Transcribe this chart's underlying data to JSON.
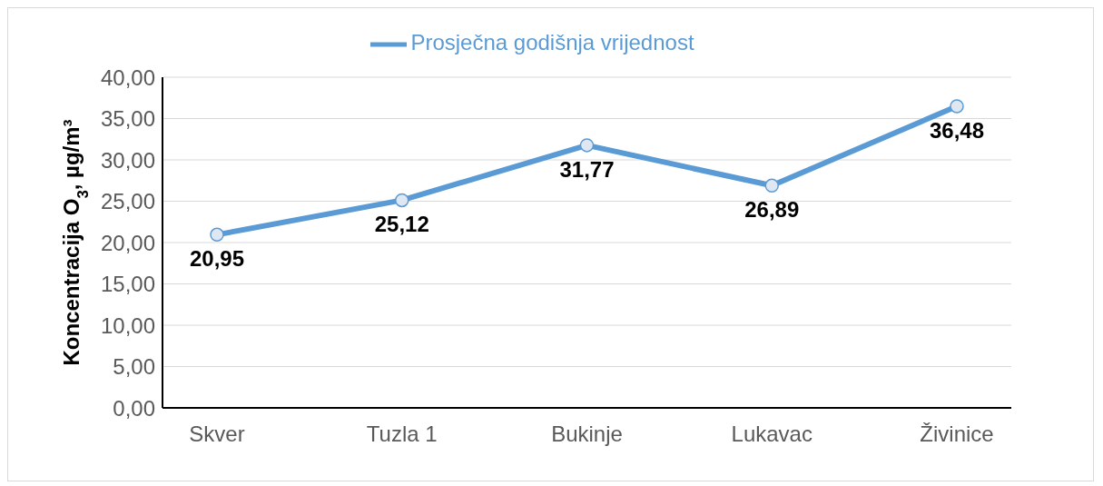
{
  "chart_data": {
    "type": "line",
    "ylabel": "Koncentracija O$_{3}$,  µg/m³",
    "categories": [
      "Skver",
      "Tuzla 1",
      "Bukinje",
      "Lukavac",
      "Živinice"
    ],
    "series": [
      {
        "name": "Prosječna godišnja vrijednost",
        "color": "#5b9bd5",
        "values": [
          20.95,
          25.12,
          31.77,
          26.89,
          36.48
        ],
        "value_labels": [
          "20,95",
          "25,12",
          "31,77",
          "26,89",
          "36,48"
        ]
      }
    ],
    "ylim": [
      0,
      40
    ],
    "yticks": [
      {
        "value": 0,
        "label": "0,00"
      },
      {
        "value": 5,
        "label": "5,00"
      },
      {
        "value": 10,
        "label": "10,00"
      },
      {
        "value": 15,
        "label": "15,00"
      },
      {
        "value": 20,
        "label": "20,00"
      },
      {
        "value": 25,
        "label": "25,00"
      },
      {
        "value": 30,
        "label": "30,00"
      },
      {
        "value": 35,
        "label": "35,00"
      },
      {
        "value": 40,
        "label": "40,00"
      }
    ],
    "grid": "y",
    "legend": "top",
    "marker": "circle",
    "line_style": "solid"
  }
}
